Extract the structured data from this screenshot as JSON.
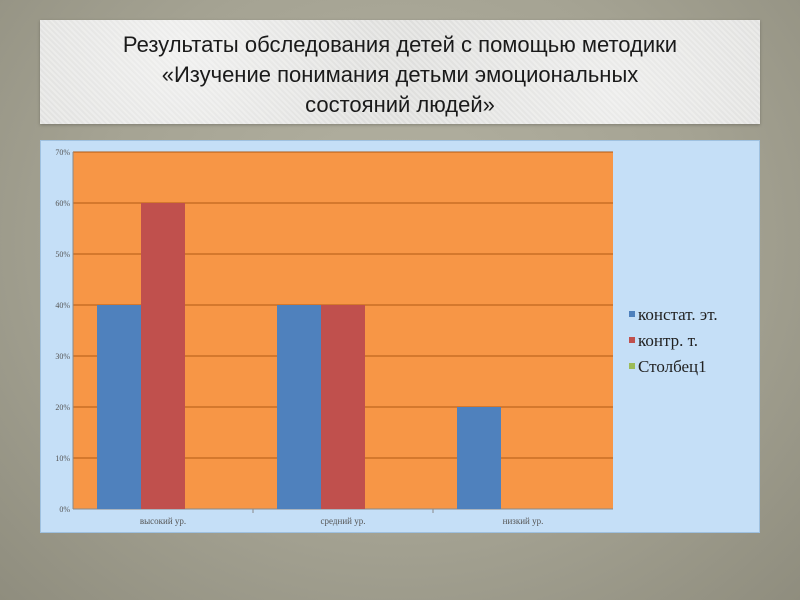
{
  "slide": {
    "title_lines": [
      "Результаты обследования детей с помощью методики",
      "«Изучение понимания детьми эмоциональных",
      "состояний людей»"
    ]
  },
  "colors": {
    "plot_bg": "#f79646",
    "chart_bg": "#c5dff7",
    "gridline": "#b05a14",
    "series": [
      "#4f81bd",
      "#c0504d",
      "#9bbb59"
    ]
  },
  "chart_data": {
    "type": "bar",
    "categories": [
      "высокий ур.",
      "средний ур.",
      "низкий ур."
    ],
    "series": [
      {
        "name": "констат. эт.",
        "values": [
          40,
          40,
          20
        ]
      },
      {
        "name": "контр. т.",
        "values": [
          60,
          40,
          0
        ]
      },
      {
        "name": "Столбец1",
        "values": [
          0,
          0,
          0
        ]
      }
    ],
    "y_ticks": [
      "0%",
      "10%",
      "20%",
      "30%",
      "40%",
      "50%",
      "60%",
      "70%"
    ],
    "ylim": [
      0,
      70
    ],
    "y_unit": "%",
    "grid": true,
    "legend_position": "right"
  }
}
